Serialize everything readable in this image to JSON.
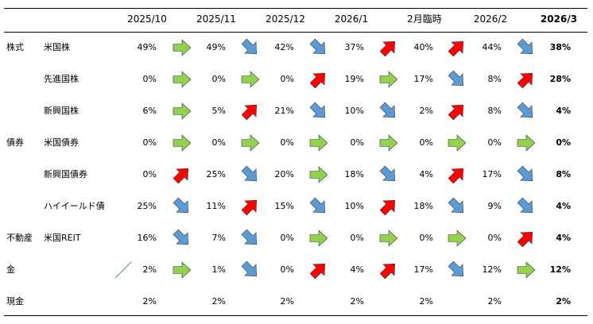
{
  "columns": [
    "2025/10",
    "2025/11",
    "2025/12",
    "2026/1",
    "2月臨時",
    "2026/2",
    "2026/3"
  ],
  "rows": [
    {
      "category": "株式",
      "asset": "米国株",
      "values": [
        "49%",
        "49%",
        "42%",
        "37%",
        "40%",
        "44%",
        "38%"
      ],
      "arrows": [
        "flat",
        "down",
        "down",
        "up",
        "up",
        "down"
      ]
    },
    {
      "category": "",
      "asset": "先進国株",
      "values": [
        "0%",
        "0%",
        "0%",
        "19%",
        "17%",
        "8%",
        "28%"
      ],
      "arrows": [
        "flat",
        "flat",
        "up",
        "flat",
        "down",
        "up"
      ]
    },
    {
      "category": "",
      "asset": "新興国株",
      "values": [
        "6%",
        "5%",
        "21%",
        "10%",
        "2%",
        "8%",
        "4%"
      ],
      "arrows": [
        "flat",
        "up",
        "down",
        "down",
        "up",
        "down"
      ]
    },
    {
      "category": "債券",
      "asset": "米国債券",
      "values": [
        "0%",
        "0%",
        "0%",
        "0%",
        "0%",
        "0%",
        "0%"
      ],
      "arrows": [
        "flat",
        "flat",
        "flat",
        "flat",
        "flat",
        "flat"
      ]
    },
    {
      "category": "",
      "asset": "新興国債券",
      "values": [
        "0%",
        "25%",
        "20%",
        "18%",
        "4%",
        "17%",
        "8%"
      ],
      "arrows": [
        "up",
        "down",
        "flat",
        "down",
        "up",
        "down"
      ]
    },
    {
      "category": "",
      "asset": "ハイイールド債",
      "values": [
        "25%",
        "11%",
        "15%",
        "10%",
        "18%",
        "9%",
        "4%"
      ],
      "arrows": [
        "down",
        "up",
        "down",
        "up",
        "down",
        "down"
      ]
    },
    {
      "category": "不動産",
      "asset": "米国REIT",
      "values": [
        "16%",
        "7%",
        "0%",
        "0%",
        "0%",
        "0%",
        "4%"
      ],
      "arrows": [
        "down",
        "down",
        "flat",
        "flat",
        "flat",
        "up"
      ]
    },
    {
      "category": "金",
      "asset": "",
      "values": [
        "2%",
        "1%",
        "0%",
        "4%",
        "17%",
        "12%",
        "12%"
      ],
      "arrows": [
        "flat",
        "down",
        "up",
        "up",
        "down",
        "flat"
      ]
    },
    {
      "category": "現金",
      "asset": "",
      "values": [
        "2%",
        "2%",
        "2%",
        "2%",
        "2%",
        "2%",
        "2%"
      ],
      "arrows": []
    }
  ],
  "colors": {
    "up": "#ff0000",
    "down": "#5b9bd5",
    "flat": "#92d050",
    "outline": "#404040",
    "slash": "#5b7fc7"
  }
}
